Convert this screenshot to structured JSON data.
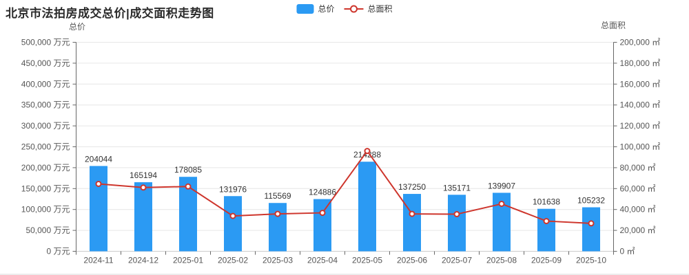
{
  "title": "北京市法拍房成交总价|成交面积走势图",
  "legend": {
    "bar_label": "总价",
    "line_label": "总面积"
  },
  "colors": {
    "bar": "#2b9af3",
    "line": "#ce352c",
    "grid": "#e6e6e6",
    "baseline": "#cccccc",
    "axis": "#666666",
    "tick_text": "#555555",
    "bar_label_text": "#333333",
    "title_text": "#2a2a2a",
    "marker_fill": "#ffffff"
  },
  "left_axis": {
    "name": "总价",
    "unit": "万元",
    "min": 0,
    "max": 500000,
    "step": 50000,
    "tick_labels": [
      "0 万元",
      "50,000 万元",
      "100,000 万元",
      "150,000 万元",
      "200,000 万元",
      "250,000 万元",
      "300,000 万元",
      "350,000 万元",
      "400,000 万元",
      "450,000 万元",
      "500,000 万元"
    ]
  },
  "right_axis": {
    "name": "总面积",
    "unit": "㎡",
    "min": 0,
    "max": 200000,
    "step": 20000,
    "tick_labels": [
      "0 ㎡",
      "20,000 ㎡",
      "40,000 ㎡",
      "60,000 ㎡",
      "80,000 ㎡",
      "100,000 ㎡",
      "120,000 ㎡",
      "140,000 ㎡",
      "160,000 ㎡",
      "180,000 ㎡",
      "200,000 ㎡"
    ]
  },
  "chart_data": {
    "type": "bar",
    "categories": [
      "2024-11",
      "2024-12",
      "2025-01",
      "2025-02",
      "2025-03",
      "2025-04",
      "2025-05",
      "2025-06",
      "2025-07",
      "2025-08",
      "2025-09",
      "2025-10"
    ],
    "series": [
      {
        "name": "总价",
        "type": "bar",
        "axis": "left",
        "unit": "万元",
        "labels_shown": true,
        "values": [
          204044,
          165194,
          178085,
          131976,
          115569,
          124886,
          214288,
          137250,
          135171,
          139907,
          101638,
          105232
        ]
      },
      {
        "name": "总面积",
        "type": "line",
        "axis": "right",
        "unit": "㎡",
        "labels_shown": false,
        "values_estimated": true,
        "values": [
          64500,
          61000,
          62000,
          33800,
          35800,
          36800,
          96000,
          35800,
          35500,
          45400,
          28900,
          26700
        ]
      }
    ],
    "title": "北京市法拍房成交总价|成交面积走势图",
    "xlabel": "",
    "ylabel_left": "总价 (万元)",
    "ylabel_right": "总面积 (㎡)",
    "ylim_left": [
      0,
      500000
    ],
    "ylim_right": [
      0,
      200000
    ],
    "grid": true,
    "legend_position": "top-center"
  }
}
